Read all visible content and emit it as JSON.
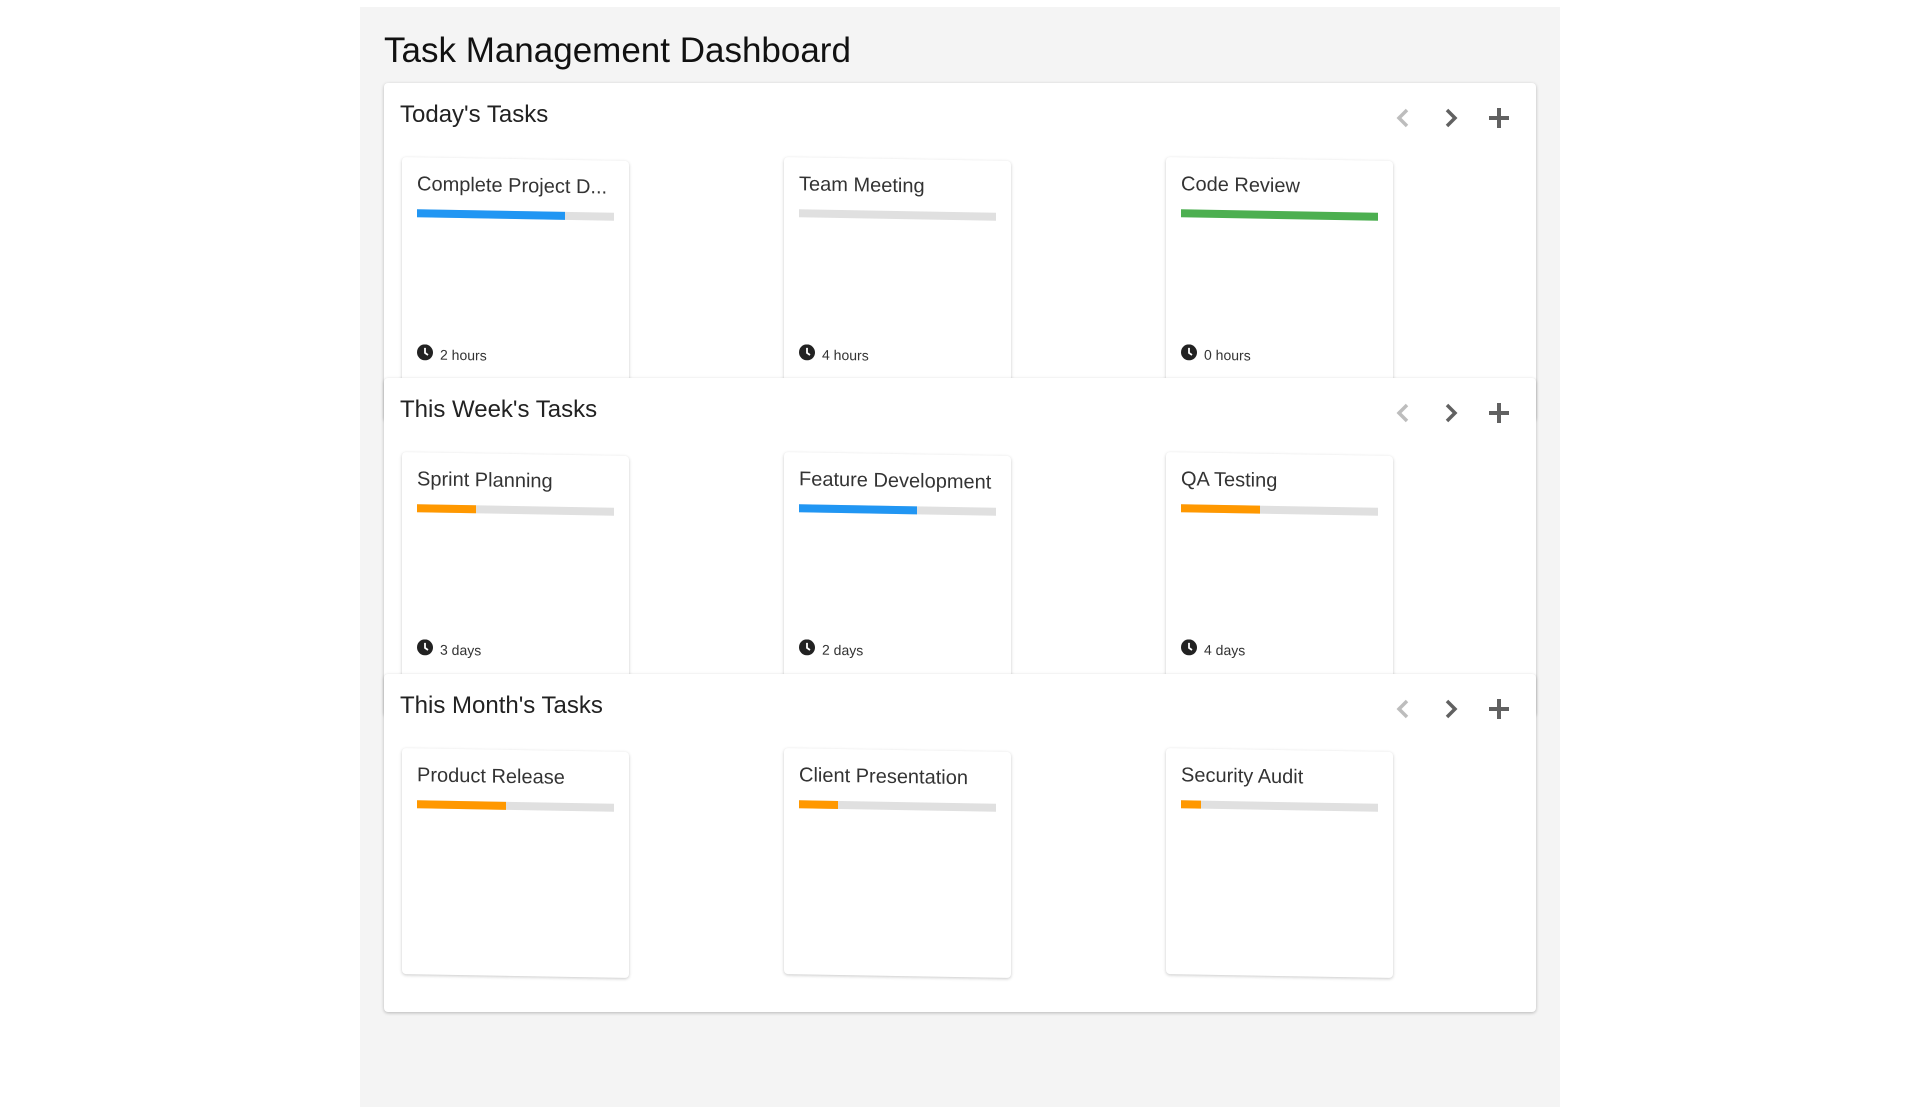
{
  "page": {
    "title": "Task Management Dashboard"
  },
  "colors": {
    "blue": "#2196f3",
    "green": "#4caf50",
    "orange": "#ff9800",
    "track": "#e0e0e0"
  },
  "icons": {
    "prev": "chevron-left-icon",
    "next": "chevron-right-icon",
    "add": "plus-icon",
    "time": "clock-icon"
  },
  "sections": [
    {
      "title": "Today's Tasks",
      "tasks": [
        {
          "title": "Complete Project D...",
          "progress": 75,
          "color": "#2196f3",
          "duration": "2 hours"
        },
        {
          "title": "Team Meeting",
          "progress": 0,
          "color": "#2196f3",
          "duration": "4 hours"
        },
        {
          "title": "Code Review",
          "progress": 100,
          "color": "#4caf50",
          "duration": "0 hours"
        }
      ]
    },
    {
      "title": "This Week's Tasks",
      "tasks": [
        {
          "title": "Sprint Planning",
          "progress": 30,
          "color": "#ff9800",
          "duration": "3 days"
        },
        {
          "title": "Feature Development",
          "progress": 60,
          "color": "#2196f3",
          "duration": "2 days"
        },
        {
          "title": "QA Testing",
          "progress": 40,
          "color": "#ff9800",
          "duration": "4 days"
        }
      ]
    },
    {
      "title": "This Month's Tasks",
      "tasks": [
        {
          "title": "Product Release",
          "progress": 45,
          "color": "#ff9800"
        },
        {
          "title": "Client Presentation",
          "progress": 20,
          "color": "#ff9800"
        },
        {
          "title": "Security Audit",
          "progress": 10,
          "color": "#ff9800"
        }
      ]
    }
  ]
}
